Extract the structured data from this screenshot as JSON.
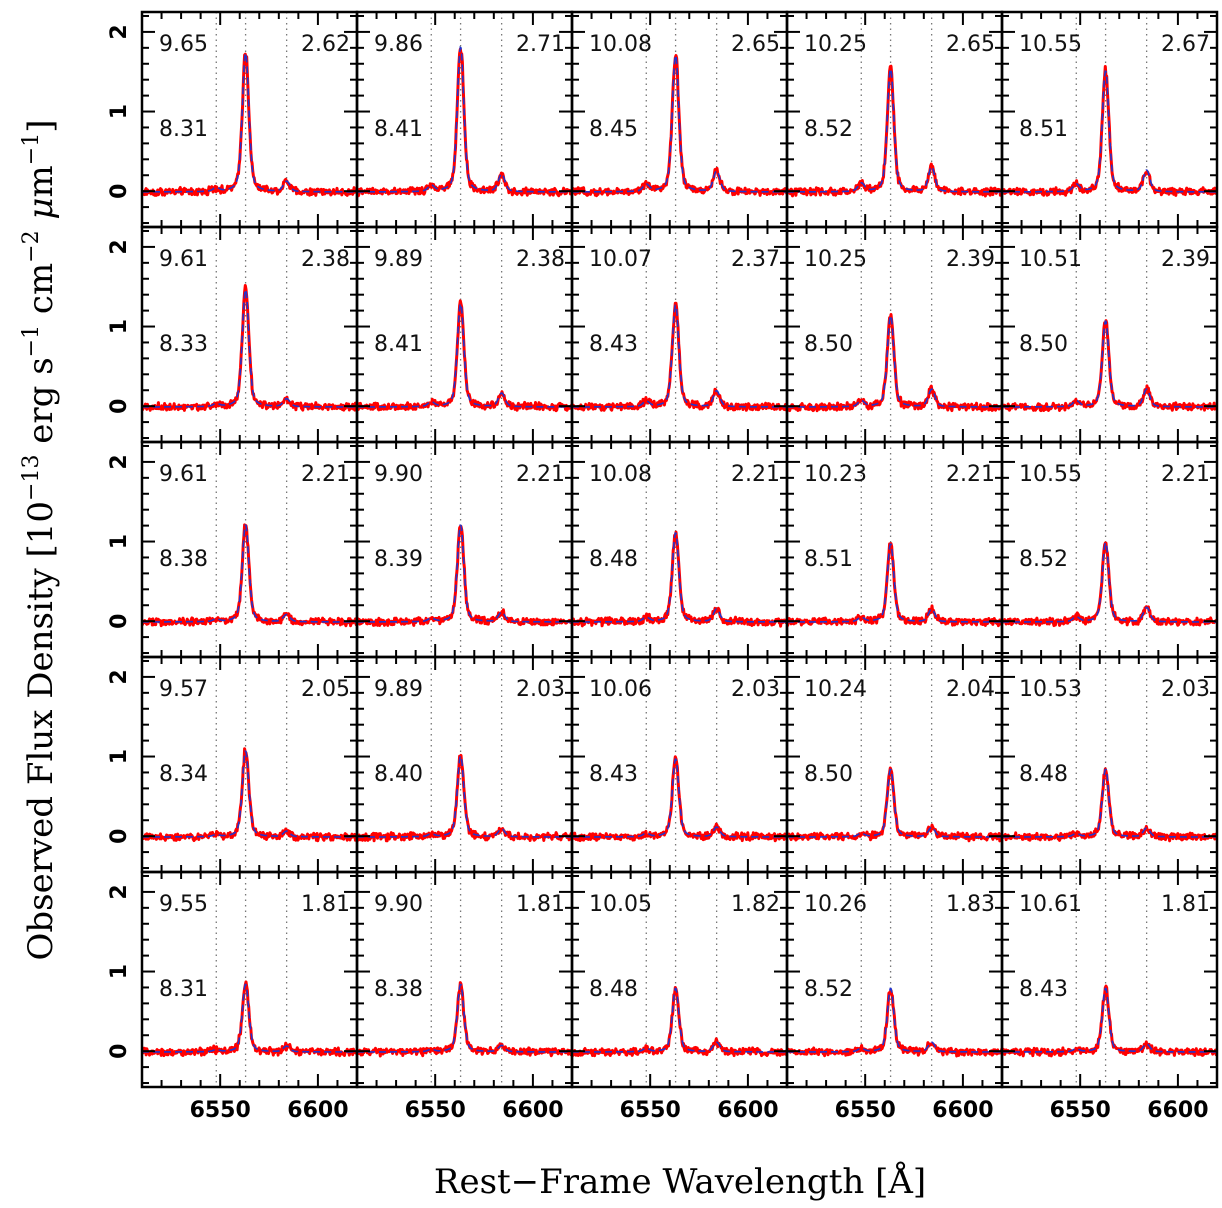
{
  "chart_data": {
    "type": "line",
    "layout": {
      "rows": 5,
      "cols": 5
    },
    "xlabel": "Rest−Frame Wavelength [Å]",
    "ylabel": {
      "prefix": "Observed Flux Density [10",
      "exp1": "−13",
      "mid1": " erg s",
      "exp2": "−1",
      "mid2": " cm",
      "exp3": "−2",
      "mu": " μ",
      "mid3": "m",
      "exp4": "−1",
      "suffix": "]"
    },
    "xlim": [
      6510,
      6620
    ],
    "ylim": [
      -0.45,
      2.25
    ],
    "xticks": [
      6550,
      6600
    ],
    "xtick_labels": [
      "6550",
      "6600"
    ],
    "yticks": [
      0,
      1,
      2
    ],
    "ytick_labels": [
      "0",
      "1",
      "2"
    ],
    "reference_lines": [
      6548,
      6563,
      6584
    ],
    "series": [
      {
        "name": "",
        "color": "#ff0000"
      },
      {
        "name": "",
        "color": "#2233cc"
      }
    ],
    "panels": [
      {
        "row": 0,
        "col": 0,
        "tl": "9.65",
        "tr": "2.62",
        "ml": "8.31",
        "peak_ha": 1.75,
        "peak_n2": 0.13
      },
      {
        "row": 0,
        "col": 1,
        "tl": "9.86",
        "tr": "2.71",
        "ml": "8.41",
        "peak_ha": 1.82,
        "peak_n2": 0.22
      },
      {
        "row": 0,
        "col": 2,
        "tl": "10.08",
        "tr": "2.65",
        "ml": "8.45",
        "peak_ha": 1.72,
        "peak_n2": 0.26
      },
      {
        "row": 0,
        "col": 3,
        "tl": "10.25",
        "tr": "2.65",
        "ml": "8.52",
        "peak_ha": 1.55,
        "peak_n2": 0.31
      },
      {
        "row": 0,
        "col": 4,
        "tl": "10.55",
        "tr": "2.67",
        "ml": "8.51",
        "peak_ha": 1.52,
        "peak_n2": 0.27
      },
      {
        "row": 1,
        "col": 0,
        "tl": "9.61",
        "tr": "2.38",
        "ml": "8.33",
        "peak_ha": 1.48,
        "peak_n2": 0.1
      },
      {
        "row": 1,
        "col": 1,
        "tl": "9.89",
        "tr": "2.38",
        "ml": "8.41",
        "peak_ha": 1.3,
        "peak_n2": 0.17
      },
      {
        "row": 1,
        "col": 2,
        "tl": "10.07",
        "tr": "2.37",
        "ml": "8.43",
        "peak_ha": 1.28,
        "peak_n2": 0.2
      },
      {
        "row": 1,
        "col": 3,
        "tl": "10.25",
        "tr": "2.39",
        "ml": "8.50",
        "peak_ha": 1.15,
        "peak_n2": 0.22
      },
      {
        "row": 1,
        "col": 4,
        "tl": "10.51",
        "tr": "2.39",
        "ml": "8.50",
        "peak_ha": 1.08,
        "peak_n2": 0.22
      },
      {
        "row": 2,
        "col": 0,
        "tl": "9.61",
        "tr": "2.21",
        "ml": "8.38",
        "peak_ha": 1.22,
        "peak_n2": 0.09
      },
      {
        "row": 2,
        "col": 1,
        "tl": "9.90",
        "tr": "2.21",
        "ml": "8.39",
        "peak_ha": 1.22,
        "peak_n2": 0.12
      },
      {
        "row": 2,
        "col": 2,
        "tl": "10.08",
        "tr": "2.21",
        "ml": "8.48",
        "peak_ha": 1.12,
        "peak_n2": 0.16
      },
      {
        "row": 2,
        "col": 3,
        "tl": "10.23",
        "tr": "2.21",
        "ml": "8.51",
        "peak_ha": 0.98,
        "peak_n2": 0.16
      },
      {
        "row": 2,
        "col": 4,
        "tl": "10.55",
        "tr": "2.21",
        "ml": "8.52",
        "peak_ha": 1.0,
        "peak_n2": 0.18
      },
      {
        "row": 3,
        "col": 0,
        "tl": "9.57",
        "tr": "2.05",
        "ml": "8.34",
        "peak_ha": 1.08,
        "peak_n2": 0.07
      },
      {
        "row": 3,
        "col": 1,
        "tl": "9.89",
        "tr": "2.03",
        "ml": "8.40",
        "peak_ha": 1.02,
        "peak_n2": 0.1
      },
      {
        "row": 3,
        "col": 2,
        "tl": "10.06",
        "tr": "2.03",
        "ml": "8.43",
        "peak_ha": 0.98,
        "peak_n2": 0.12
      },
      {
        "row": 3,
        "col": 3,
        "tl": "10.24",
        "tr": "2.04",
        "ml": "8.50",
        "peak_ha": 0.85,
        "peak_n2": 0.12
      },
      {
        "row": 3,
        "col": 4,
        "tl": "10.53",
        "tr": "2.03",
        "ml": "8.48",
        "peak_ha": 0.85,
        "peak_n2": 0.11
      },
      {
        "row": 4,
        "col": 0,
        "tl": "9.55",
        "tr": "1.81",
        "ml": "8.31",
        "peak_ha": 0.85,
        "peak_n2": 0.07
      },
      {
        "row": 4,
        "col": 1,
        "tl": "9.90",
        "tr": "1.81",
        "ml": "8.38",
        "peak_ha": 0.85,
        "peak_n2": 0.08
      },
      {
        "row": 4,
        "col": 2,
        "tl": "10.05",
        "tr": "1.82",
        "ml": "8.48",
        "peak_ha": 0.8,
        "peak_n2": 0.12
      },
      {
        "row": 4,
        "col": 3,
        "tl": "10.26",
        "tr": "1.83",
        "ml": "8.52",
        "peak_ha": 0.8,
        "peak_n2": 0.12
      },
      {
        "row": 4,
        "col": 4,
        "tl": "10.61",
        "tr": "1.81",
        "ml": "8.43",
        "peak_ha": 0.8,
        "peak_n2": 0.1
      }
    ]
  }
}
